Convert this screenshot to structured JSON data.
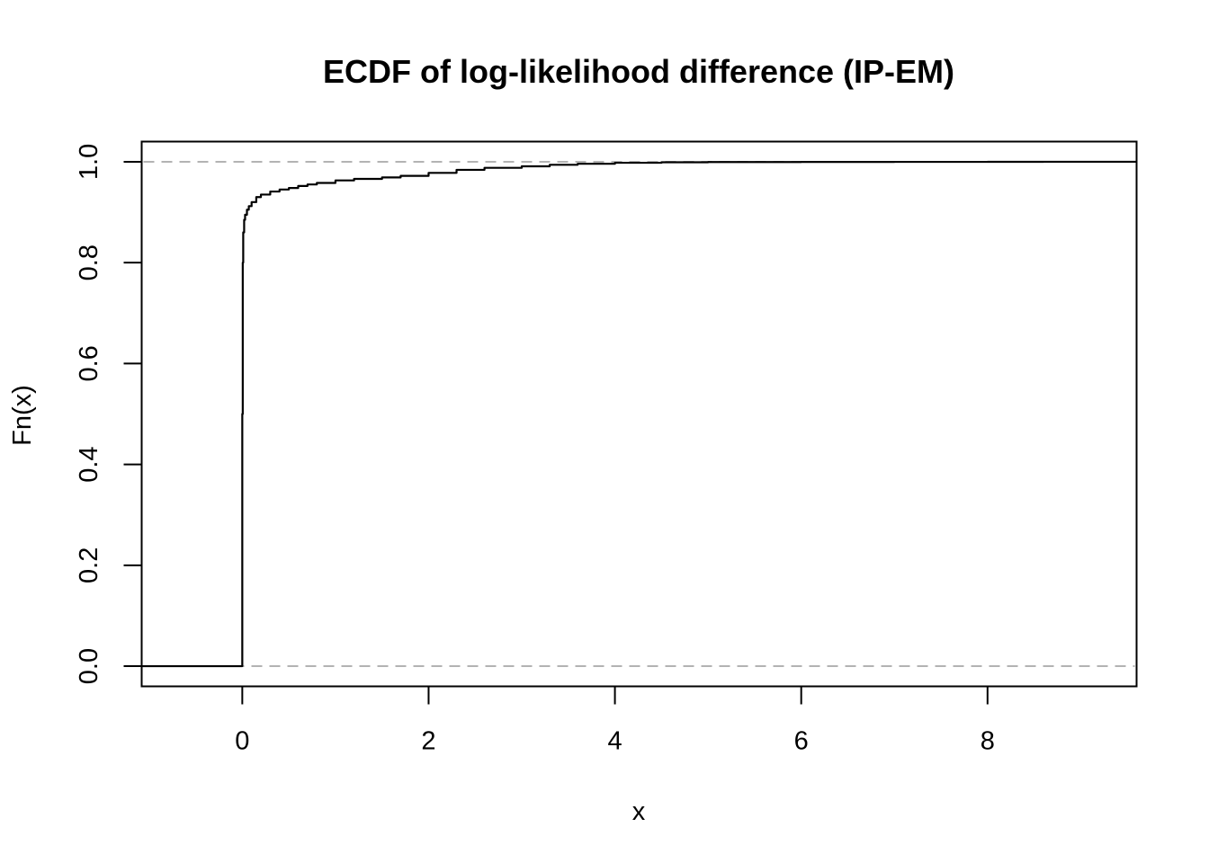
{
  "chart_data": {
    "type": "line",
    "title": "ECDF of log-likelihood difference (IP-EM)",
    "xlabel": "x",
    "ylabel": "Fn(x)",
    "xlim": [
      -1.08,
      9.6
    ],
    "ylim": [
      -0.04,
      1.04
    ],
    "x_ticks": [
      0,
      2,
      4,
      6,
      8
    ],
    "x_tick_labels": [
      "0",
      "2",
      "4",
      "6",
      "8"
    ],
    "y_ticks": [
      0.0,
      0.2,
      0.4,
      0.6,
      0.8,
      1.0
    ],
    "y_tick_labels": [
      "0.0",
      "0.2",
      "0.4",
      "0.6",
      "0.8",
      "1.0"
    ],
    "reference_lines": [
      0,
      1
    ],
    "series": [
      {
        "x": [
          -1.08,
          0.0,
          0.0,
          0.005,
          0.01,
          0.02,
          0.03,
          0.05,
          0.07,
          0.1,
          0.15,
          0.2,
          0.3,
          0.4,
          0.5,
          0.6,
          0.7,
          0.8,
          1.0,
          1.2,
          1.5,
          1.7,
          2.0,
          2.3,
          2.6,
          3.0,
          3.3,
          3.6,
          4.0,
          4.5,
          5.0,
          6.0,
          7.0,
          8.0,
          8.6,
          9.6
        ],
        "y": [
          0.0,
          0.0,
          0.5,
          0.8,
          0.86,
          0.885,
          0.895,
          0.905,
          0.912,
          0.92,
          0.93,
          0.935,
          0.941,
          0.945,
          0.948,
          0.952,
          0.955,
          0.958,
          0.963,
          0.966,
          0.969,
          0.972,
          0.978,
          0.984,
          0.988,
          0.991,
          0.994,
          0.996,
          0.998,
          0.999,
          0.9995,
          0.9997,
          0.9998,
          0.9999,
          1.0,
          1.0
        ]
      }
    ],
    "colors": {
      "line": "#000000",
      "reference": "#b3b3b3",
      "axis": "#000000"
    },
    "grid": false
  }
}
